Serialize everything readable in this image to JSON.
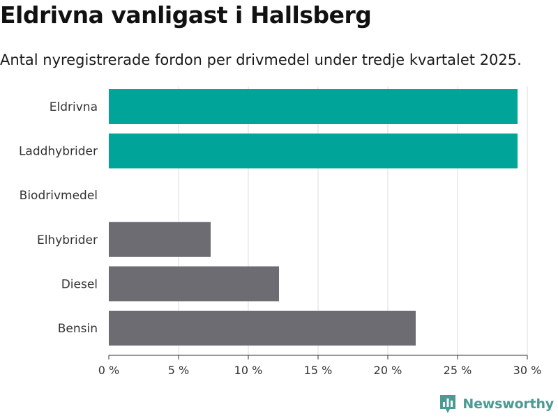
{
  "title": "Eldrivna vanligast i Hallsberg",
  "subtitle": "Antal nyregistrerade fordon per drivmedel under tredje kvartalet 2025.",
  "brand": {
    "name": "Newsworthy",
    "color": "#4a9b94",
    "icon": "bar-chart-icon"
  },
  "colors": {
    "highlight": "#00a499",
    "default": "#6d6c73",
    "grid": "#dddddd",
    "axis": "#333333"
  },
  "chart_data": {
    "type": "bar",
    "orientation": "horizontal",
    "categories": [
      "Eldrivna",
      "Laddhybrider",
      "Biodrivmedel",
      "Elhybrider",
      "Diesel",
      "Bensin"
    ],
    "values": [
      29.3,
      29.3,
      0,
      7.3,
      12.2,
      22.0
    ],
    "highlighted": [
      true,
      true,
      false,
      false,
      false,
      false
    ],
    "xlim": [
      0,
      30
    ],
    "xticks": [
      0,
      5,
      10,
      15,
      20,
      25,
      30
    ],
    "xtick_labels": [
      "0 %",
      "5 %",
      "10 %",
      "15 %",
      "20 %",
      "25 %",
      "30 %"
    ],
    "grid": true
  }
}
